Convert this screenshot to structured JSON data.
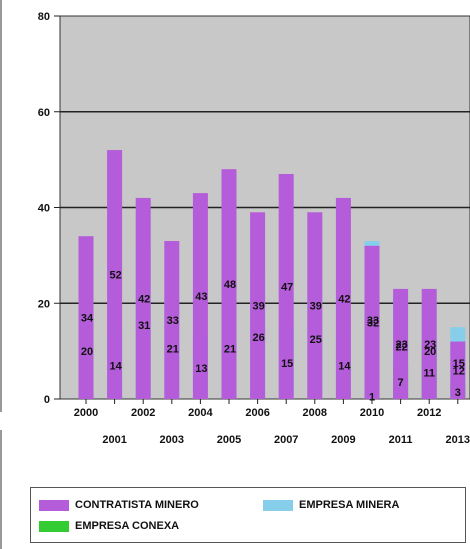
{
  "chart_data": {
    "type": "bar",
    "stacked": true,
    "categories": [
      "2000",
      "2001",
      "2002",
      "2003",
      "2004",
      "2005",
      "2006",
      "2007",
      "2008",
      "2009",
      "2010",
      "2011",
      "2012",
      "2013"
    ],
    "series": [
      {
        "name": "EMPRESA MINERA",
        "color": "#87ceeb",
        "values": [
          20,
          14,
          31,
          21,
          13,
          21,
          26,
          15,
          25,
          14,
          33,
          22,
          20,
          15
        ]
      },
      {
        "name": "EMPRESA CONEXA",
        "color": "#33cc33",
        "values": [
          0,
          0,
          0,
          0,
          0,
          0,
          0,
          0,
          0,
          0,
          1,
          7,
          11,
          3
        ]
      },
      {
        "name": "CONTRATISTA MINERO",
        "color": "#b45cd9",
        "values": [
          34,
          52,
          42,
          33,
          43,
          48,
          39,
          47,
          39,
          42,
          32,
          23,
          23,
          12
        ]
      }
    ],
    "ylim": [
      0,
      80
    ],
    "yticks": [
      0,
      20,
      40,
      60,
      80
    ],
    "grid": true,
    "legend_position": "bottom"
  },
  "legend": {
    "contratista": "CONTRATISTA MINERO",
    "empresa": "EMPRESA MINERA",
    "conexa": "EMPRESA CONEXA"
  }
}
